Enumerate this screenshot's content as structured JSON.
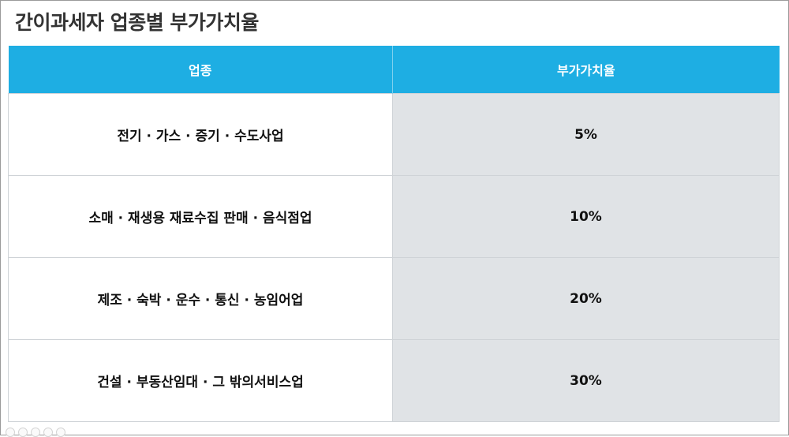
{
  "title": "간이과세자 업종별 부가가치율",
  "table": {
    "headers": [
      "업종",
      "부가가치율"
    ],
    "rows": [
      {
        "industry": "전기 · 가스 · 증기 · 수도사업",
        "rate": "5%"
      },
      {
        "industry": "소매 · 재생용 재료수집 판매 · 음식점업",
        "rate": "10%"
      },
      {
        "industry": "제조 · 숙박 · 운수 · 통신 · 농임어업",
        "rate": "20%"
      },
      {
        "industry": "건설 · 부동산임대 · 그 밖의서비스업",
        "rate": "30%"
      }
    ]
  },
  "colors": {
    "header_bg": "#1eaee3",
    "rate_cell_bg": "#e0e3e6",
    "title_text": "#333333"
  }
}
